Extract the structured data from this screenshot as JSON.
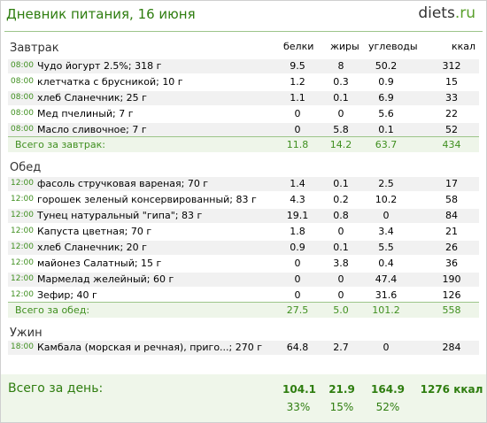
{
  "header": {
    "title": "Дневник питания, 16 июня",
    "logo_main": "diets",
    "logo_dot": ".",
    "logo_tld": "ru"
  },
  "columns": {
    "protein": "белки",
    "fat": "жиры",
    "carbs": "углеводы",
    "kcal": "ккал"
  },
  "meals": [
    {
      "name": "Завтрак",
      "items": [
        {
          "time": "08:00",
          "name": "Чудо йогурт 2.5%; 318 г",
          "protein": "9.5",
          "fat": "8",
          "carbs": "50.2",
          "kcal": "312"
        },
        {
          "time": "08:00",
          "name": "клетчатка с брусникой; 10 г",
          "protein": "1.2",
          "fat": "0.3",
          "carbs": "0.9",
          "kcal": "15"
        },
        {
          "time": "08:00",
          "name": "хлеб Сланечник; 25 г",
          "protein": "1.1",
          "fat": "0.1",
          "carbs": "6.9",
          "kcal": "33"
        },
        {
          "time": "08:00",
          "name": "Мед пчелиный; 7 г",
          "protein": "0",
          "fat": "0",
          "carbs": "5.6",
          "kcal": "22"
        },
        {
          "time": "08:00",
          "name": "Масло сливочное; 7 г",
          "protein": "0",
          "fat": "5.8",
          "carbs": "0.1",
          "kcal": "52"
        }
      ],
      "total": {
        "label": "Всего за завтрак:",
        "protein": "11.8",
        "fat": "14.2",
        "carbs": "63.7",
        "kcal": "434"
      }
    },
    {
      "name": "Обед",
      "items": [
        {
          "time": "12:00",
          "name": "фасоль стручковая вареная; 70 г",
          "protein": "1.4",
          "fat": "0.1",
          "carbs": "2.5",
          "kcal": "17"
        },
        {
          "time": "12:00",
          "name": "горошек зеленый консервированный; 83 г",
          "protein": "4.3",
          "fat": "0.2",
          "carbs": "10.2",
          "kcal": "58"
        },
        {
          "time": "12:00",
          "name": "Тунец натуральный \"гипа\"; 83 г",
          "protein": "19.1",
          "fat": "0.8",
          "carbs": "0",
          "kcal": "84"
        },
        {
          "time": "12:00",
          "name": "Капуста цветная; 70 г",
          "protein": "1.8",
          "fat": "0",
          "carbs": "3.4",
          "kcal": "21"
        },
        {
          "time": "12:00",
          "name": "хлеб Сланечник; 20 г",
          "protein": "0.9",
          "fat": "0.1",
          "carbs": "5.5",
          "kcal": "26"
        },
        {
          "time": "12:00",
          "name": "майонез Салатный; 15 г",
          "protein": "0",
          "fat": "3.8",
          "carbs": "0.4",
          "kcal": "36"
        },
        {
          "time": "12:00",
          "name": "Мармелад желейный; 60 г",
          "protein": "0",
          "fat": "0",
          "carbs": "47.4",
          "kcal": "190"
        },
        {
          "time": "12:00",
          "name": "Зефир; 40 г",
          "protein": "0",
          "fat": "0",
          "carbs": "31.6",
          "kcal": "126"
        }
      ],
      "total": {
        "label": "Всего за обед:",
        "protein": "27.5",
        "fat": "5.0",
        "carbs": "101.2",
        "kcal": "558"
      }
    },
    {
      "name": "Ужин",
      "items": [
        {
          "time": "18:00",
          "name": "Камбала (морская и речная), приго...; 270 г",
          "protein": "64.8",
          "fat": "2.7",
          "carbs": "0",
          "kcal": "284"
        }
      ],
      "total": null
    }
  ],
  "day_total": {
    "label": "Всего за день:",
    "protein": "104.1",
    "fat": "21.9",
    "carbs": "164.9",
    "kcal": "1276 ккал",
    "protein_pct": "33%",
    "fat_pct": "15%",
    "carbs_pct": "52%"
  }
}
